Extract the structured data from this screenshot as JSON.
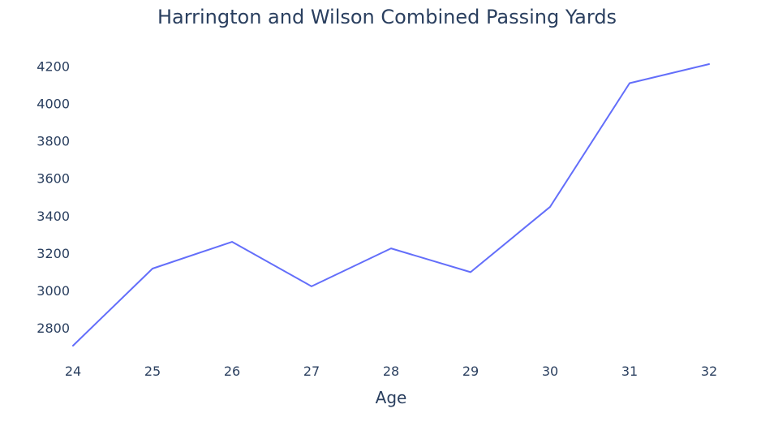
{
  "chart_data": {
    "type": "line",
    "title": "Harrington and Wilson Combined Passing Yards",
    "xlabel": "Age",
    "ylabel": "",
    "x": [
      24,
      25,
      26,
      27,
      28,
      29,
      30,
      31,
      32
    ],
    "series": [
      {
        "values": [
          2705,
          3117,
          3260,
          3022,
          3225,
          3098,
          3447,
          4108,
          4210
        ],
        "color": "#636efa"
      }
    ],
    "xlim": [
      24,
      32
    ],
    "ylim": [
      2705,
      4210
    ],
    "yticks": [
      2800,
      3000,
      3200,
      3400,
      3600,
      3800,
      4000,
      4200
    ],
    "grid": false,
    "legend": "none"
  }
}
